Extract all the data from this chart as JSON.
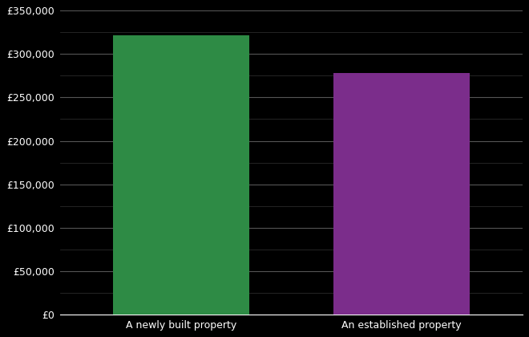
{
  "categories": [
    "A newly built property",
    "An established property"
  ],
  "values": [
    322000,
    278000
  ],
  "bar_colors": [
    "#2e8b45",
    "#7b2d8b"
  ],
  "background_color": "#000000",
  "text_color": "#ffffff",
  "grid_color_major": "#555555",
  "grid_color_minor": "#333333",
  "ylim": [
    0,
    350000
  ],
  "ytick_major_step": 50000,
  "ytick_minor_step": 25000,
  "bar_width": 0.62,
  "figsize": [
    6.6,
    4.2
  ],
  "dpi": 100,
  "font_size_ticks": 9,
  "font_size_xlabel": 9
}
